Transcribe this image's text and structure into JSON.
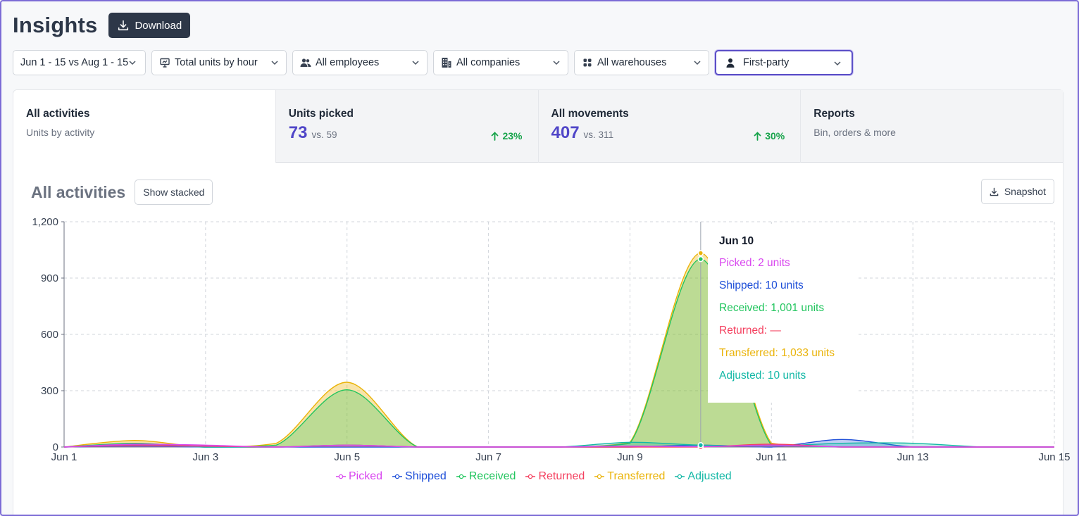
{
  "header": {
    "title": "Insights",
    "download_label": "Download"
  },
  "filters": [
    {
      "label": "Jun 1 - 15 vs Aug 1 - 15",
      "icon": "",
      "width": 189
    },
    {
      "label": "Total units by hour",
      "icon": "presentation-chart-icon",
      "width": 192
    },
    {
      "label": "All employees",
      "icon": "users-icon",
      "width": 192
    },
    {
      "label": "All companies",
      "icon": "building-icon",
      "width": 192
    },
    {
      "label": "All warehouses",
      "icon": "grid-icon",
      "width": 192
    },
    {
      "label": "First-party",
      "icon": "user-icon",
      "width": 196,
      "active": true
    }
  ],
  "tabs": {
    "all_activities": {
      "title": "All activities",
      "sub": "Units by activity"
    },
    "units_picked": {
      "title": "Units picked",
      "value": "73",
      "vs": "vs. 59",
      "change": "23%"
    },
    "all_movements": {
      "title": "All movements",
      "value": "407",
      "vs": "vs. 311",
      "change": "30%"
    },
    "reports": {
      "title": "Reports",
      "sub": "Bin, orders & more"
    }
  },
  "chart_section": {
    "title": "All activities",
    "stacked_label": "Show stacked",
    "snapshot_label": "Snapshot"
  },
  "tooltip": {
    "date": "Jun 10",
    "rows": [
      {
        "text": "Picked: 2 units",
        "color": "#d946ef"
      },
      {
        "text": "Shipped: 10 units",
        "color": "#1d4ed8"
      },
      {
        "text": "Received: 1,001 units",
        "color": "#22c55e"
      },
      {
        "text": "Returned: —",
        "color": "#f43f5e"
      },
      {
        "text": "Transferred: 1,033 units",
        "color": "#eab308"
      },
      {
        "text": "Adjusted: 10 units",
        "color": "#14b8a6"
      }
    ]
  },
  "chart_data": {
    "type": "area",
    "x": [
      "Jun 1",
      "Jun 2",
      "Jun 3",
      "Jun 4",
      "Jun 5",
      "Jun 6",
      "Jun 7",
      "Jun 8",
      "Jun 9",
      "Jun 10",
      "Jun 11",
      "Jun 12",
      "Jun 13",
      "Jun 14",
      "Jun 15"
    ],
    "xticks": [
      "Jun 1",
      "Jun 3",
      "Jun 5",
      "Jun 7",
      "Jun 9",
      "Jun 11",
      "Jun 13",
      "Jun 15"
    ],
    "yticks": [
      "0",
      "300",
      "600",
      "900",
      "1,200"
    ],
    "ylim": [
      0,
      1200
    ],
    "series": [
      {
        "name": "Picked",
        "color": "#d946ef",
        "values": [
          0,
          15,
          10,
          0,
          10,
          0,
          0,
          0,
          5,
          2,
          10,
          0,
          0,
          0,
          0
        ]
      },
      {
        "name": "Shipped",
        "color": "#1d4ed8",
        "values": [
          0,
          5,
          0,
          0,
          0,
          0,
          0,
          0,
          0,
          10,
          0,
          40,
          0,
          0,
          0
        ]
      },
      {
        "name": "Received",
        "color": "#22c55e",
        "values": [
          0,
          20,
          0,
          10,
          305,
          0,
          0,
          0,
          20,
          1001,
          10,
          0,
          0,
          0,
          0
        ]
      },
      {
        "name": "Returned",
        "color": "#f43f5e",
        "values": [
          0,
          10,
          5,
          0,
          10,
          0,
          0,
          0,
          0,
          0,
          15,
          0,
          0,
          0,
          0
        ]
      },
      {
        "name": "Transferred",
        "color": "#eab308",
        "values": [
          0,
          35,
          0,
          20,
          345,
          0,
          0,
          0,
          25,
          1033,
          20,
          0,
          0,
          0,
          0
        ]
      },
      {
        "name": "Adjusted",
        "color": "#14b8a6",
        "values": [
          0,
          15,
          0,
          0,
          10,
          0,
          0,
          0,
          25,
          10,
          5,
          20,
          20,
          0,
          0
        ]
      }
    ],
    "grid": true,
    "legend": "bottom"
  }
}
